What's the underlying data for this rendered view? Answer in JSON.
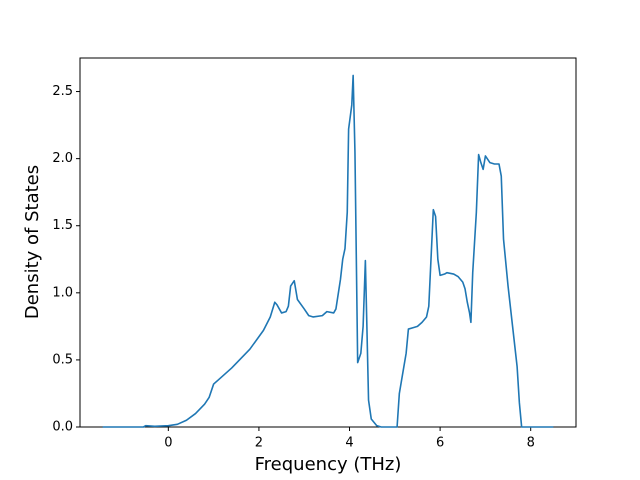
{
  "chart_data": {
    "type": "line",
    "x_label": "Frequency (THz)",
    "y_label": "Density of States",
    "xlim": [
      -1.95,
      9.0
    ],
    "ylim": [
      0,
      2.75
    ],
    "xticks": [
      0,
      2,
      4,
      6,
      8
    ],
    "yticks": [
      {
        "value": 0,
        "label": "0.0"
      },
      {
        "value": 0.5,
        "label": "0.5"
      },
      {
        "value": 1,
        "label": "1.0"
      },
      {
        "value": 1.5,
        "label": "1.5"
      },
      {
        "value": 2,
        "label": "2.0"
      },
      {
        "value": 2.5,
        "label": "2.5"
      }
    ],
    "grid": false,
    "series": [
      {
        "color": "#1f77b4",
        "x": [
          -1.45,
          -0.55,
          -0.5,
          -0.3,
          0,
          0.2,
          0.4,
          0.6,
          0.8,
          0.9,
          1.0,
          1.1,
          1.4,
          1.8,
          2.1,
          2.25,
          2.35,
          2.4,
          2.5,
          2.6,
          2.65,
          2.7,
          2.78,
          2.85,
          3.0,
          3.1,
          3.2,
          3.4,
          3.5,
          3.65,
          3.7,
          3.8,
          3.85,
          3.9,
          3.95,
          3.98,
          4.05,
          4.08,
          4.12,
          4.18,
          4.25,
          4.3,
          4.35,
          4.38,
          4.42,
          4.48,
          4.6,
          4.7,
          5.05,
          5.1,
          5.2,
          5.25,
          5.3,
          5.4,
          5.5,
          5.6,
          5.7,
          5.75,
          5.85,
          5.9,
          5.95,
          6.0,
          6.1,
          6.15,
          6.3,
          6.4,
          6.5,
          6.55,
          6.6,
          6.65,
          6.68,
          6.72,
          6.8,
          6.85,
          6.9,
          6.95,
          7.0,
          7.1,
          7.2,
          7.3,
          7.35,
          7.4,
          7.5,
          7.6,
          7.7,
          7.75,
          7.8,
          8.5
        ],
        "values": [
          0,
          0,
          0.01,
          0.005,
          0.01,
          0.02,
          0.05,
          0.1,
          0.17,
          0.22,
          0.32,
          0.35,
          0.44,
          0.58,
          0.72,
          0.82,
          0.93,
          0.91,
          0.85,
          0.86,
          0.9,
          1.05,
          1.09,
          0.95,
          0.88,
          0.83,
          0.82,
          0.83,
          0.86,
          0.85,
          0.88,
          1.1,
          1.25,
          1.33,
          1.6,
          2.22,
          2.4,
          2.62,
          2.05,
          0.48,
          0.55,
          0.75,
          1.24,
          0.8,
          0.2,
          0.06,
          0.01,
          0,
          0,
          0.25,
          0.45,
          0.55,
          0.73,
          0.74,
          0.75,
          0.78,
          0.82,
          0.9,
          1.62,
          1.57,
          1.25,
          1.13,
          1.14,
          1.15,
          1.14,
          1.12,
          1.08,
          1.03,
          0.93,
          0.85,
          0.78,
          1.15,
          1.6,
          2.03,
          1.97,
          1.92,
          2.02,
          1.97,
          1.96,
          1.96,
          1.87,
          1.4,
          1.05,
          0.75,
          0.45,
          0.18,
          0,
          0
        ]
      }
    ]
  }
}
